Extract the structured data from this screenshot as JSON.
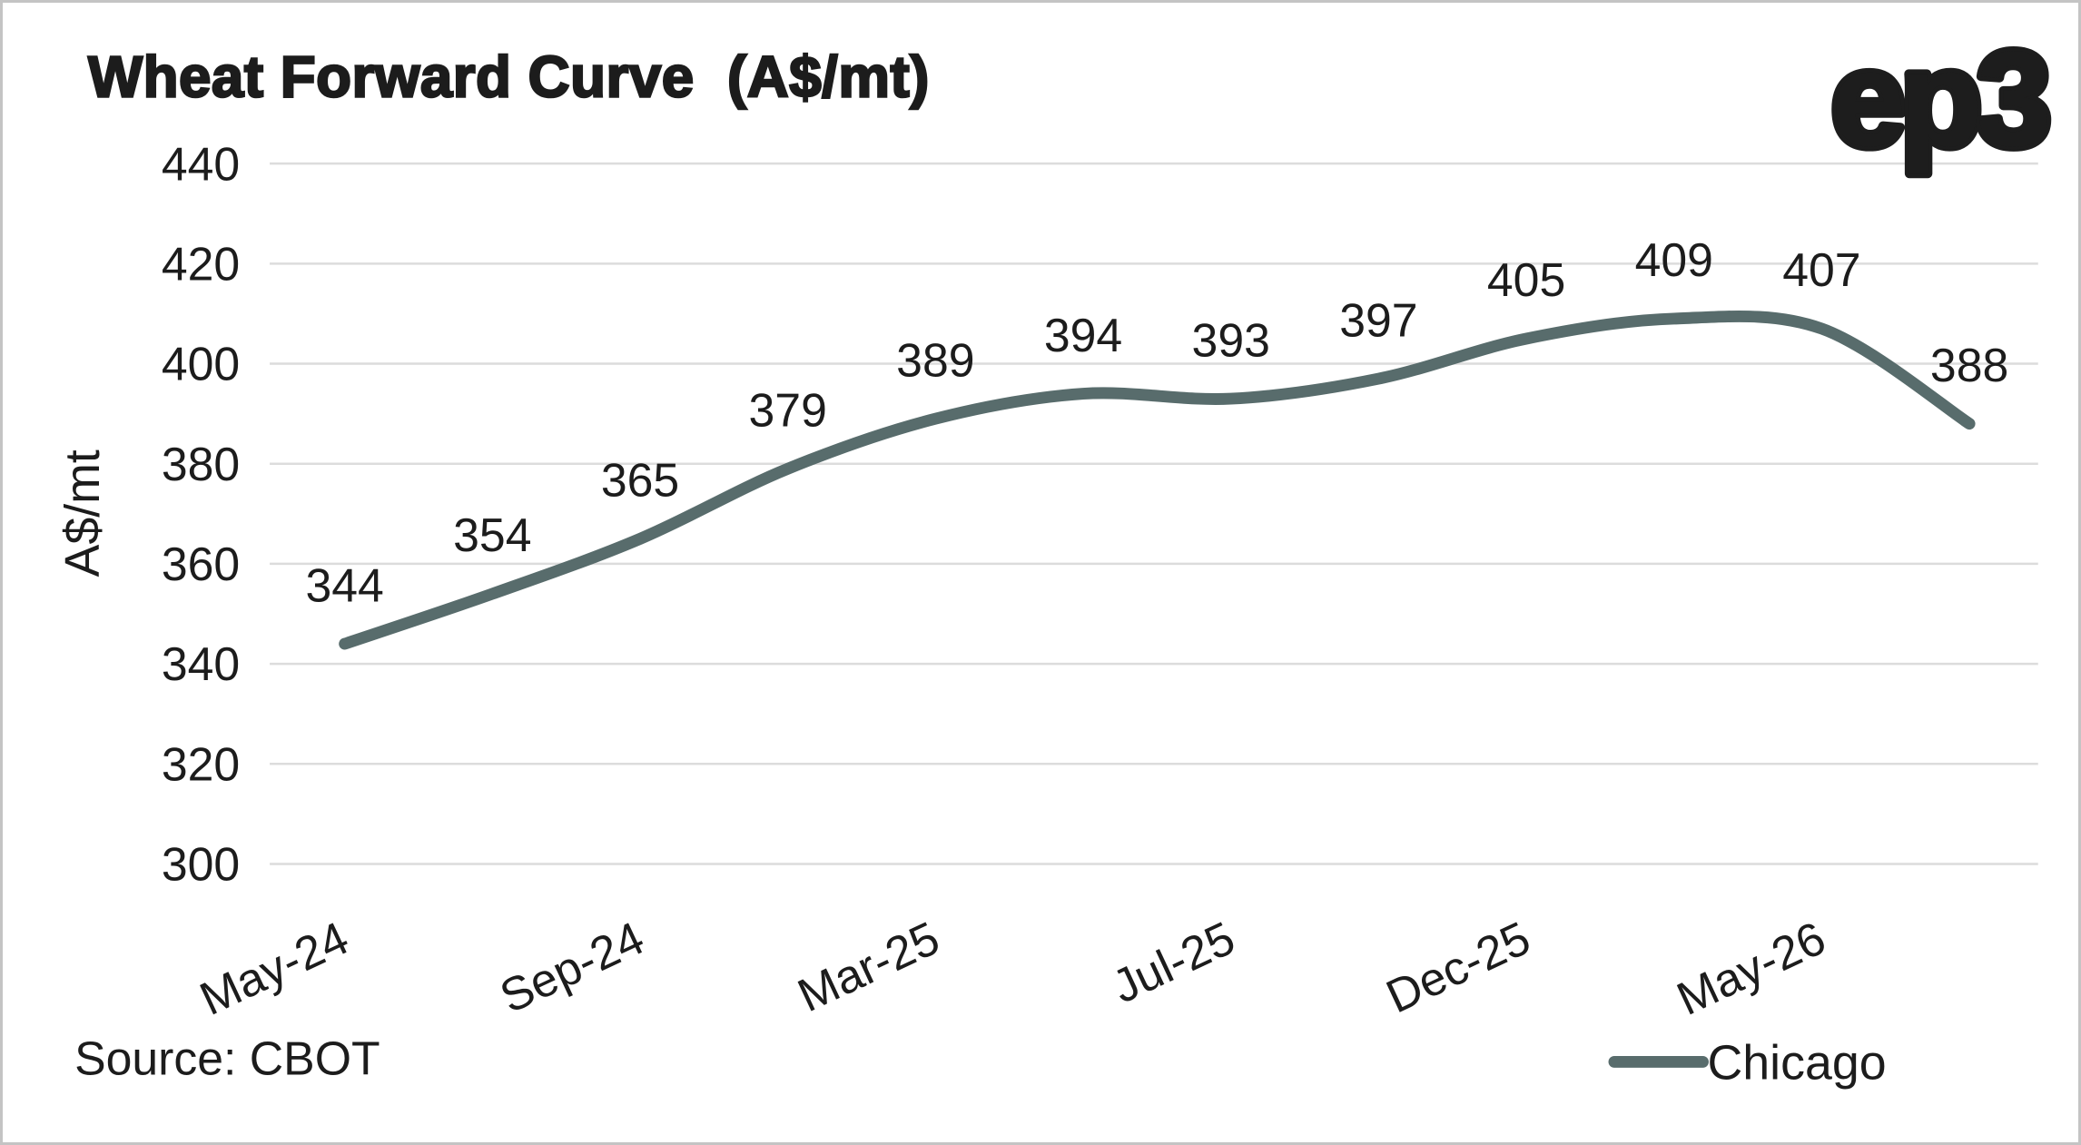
{
  "header": {
    "title": "Wheat Forward Curve  (A$/mt)",
    "logo": "ep3"
  },
  "footer": {
    "source": "Source: CBOT"
  },
  "colors": {
    "line": "#586c6c",
    "grid": "#dcdcdc",
    "text": "#1c1c1c",
    "logo": "#1d1d1d",
    "border": "#c4c4c4",
    "background": "#ffffff"
  },
  "chart_data": {
    "type": "line",
    "title": "Wheat Forward Curve (A$/mt)",
    "xlabel": "",
    "ylabel": "A$/mt",
    "ylim": [
      300,
      440
    ],
    "yticks": [
      440,
      420,
      400,
      380,
      360,
      340,
      320,
      300
    ],
    "grid": "horizontal-only",
    "line_style": "smooth-spline",
    "markers": "none",
    "legend_position": "bottom-right",
    "x_tick_labels": [
      "May-24",
      "Sep-24",
      "Mar-25",
      "Jul-25",
      "Dec-25",
      "May-26"
    ],
    "x_tick_label_every_nth_point": 2,
    "x_tick_rotation_deg": -25,
    "series": [
      {
        "name": "Chicago",
        "color": "#586c6c",
        "values": [
          344,
          354,
          365,
          379,
          389,
          394,
          393,
          397,
          405,
          409,
          407,
          388
        ],
        "data_labels": [
          344,
          354,
          365,
          379,
          389,
          394,
          393,
          397,
          405,
          409,
          407,
          388
        ],
        "data_labels_shown": true
      }
    ]
  }
}
